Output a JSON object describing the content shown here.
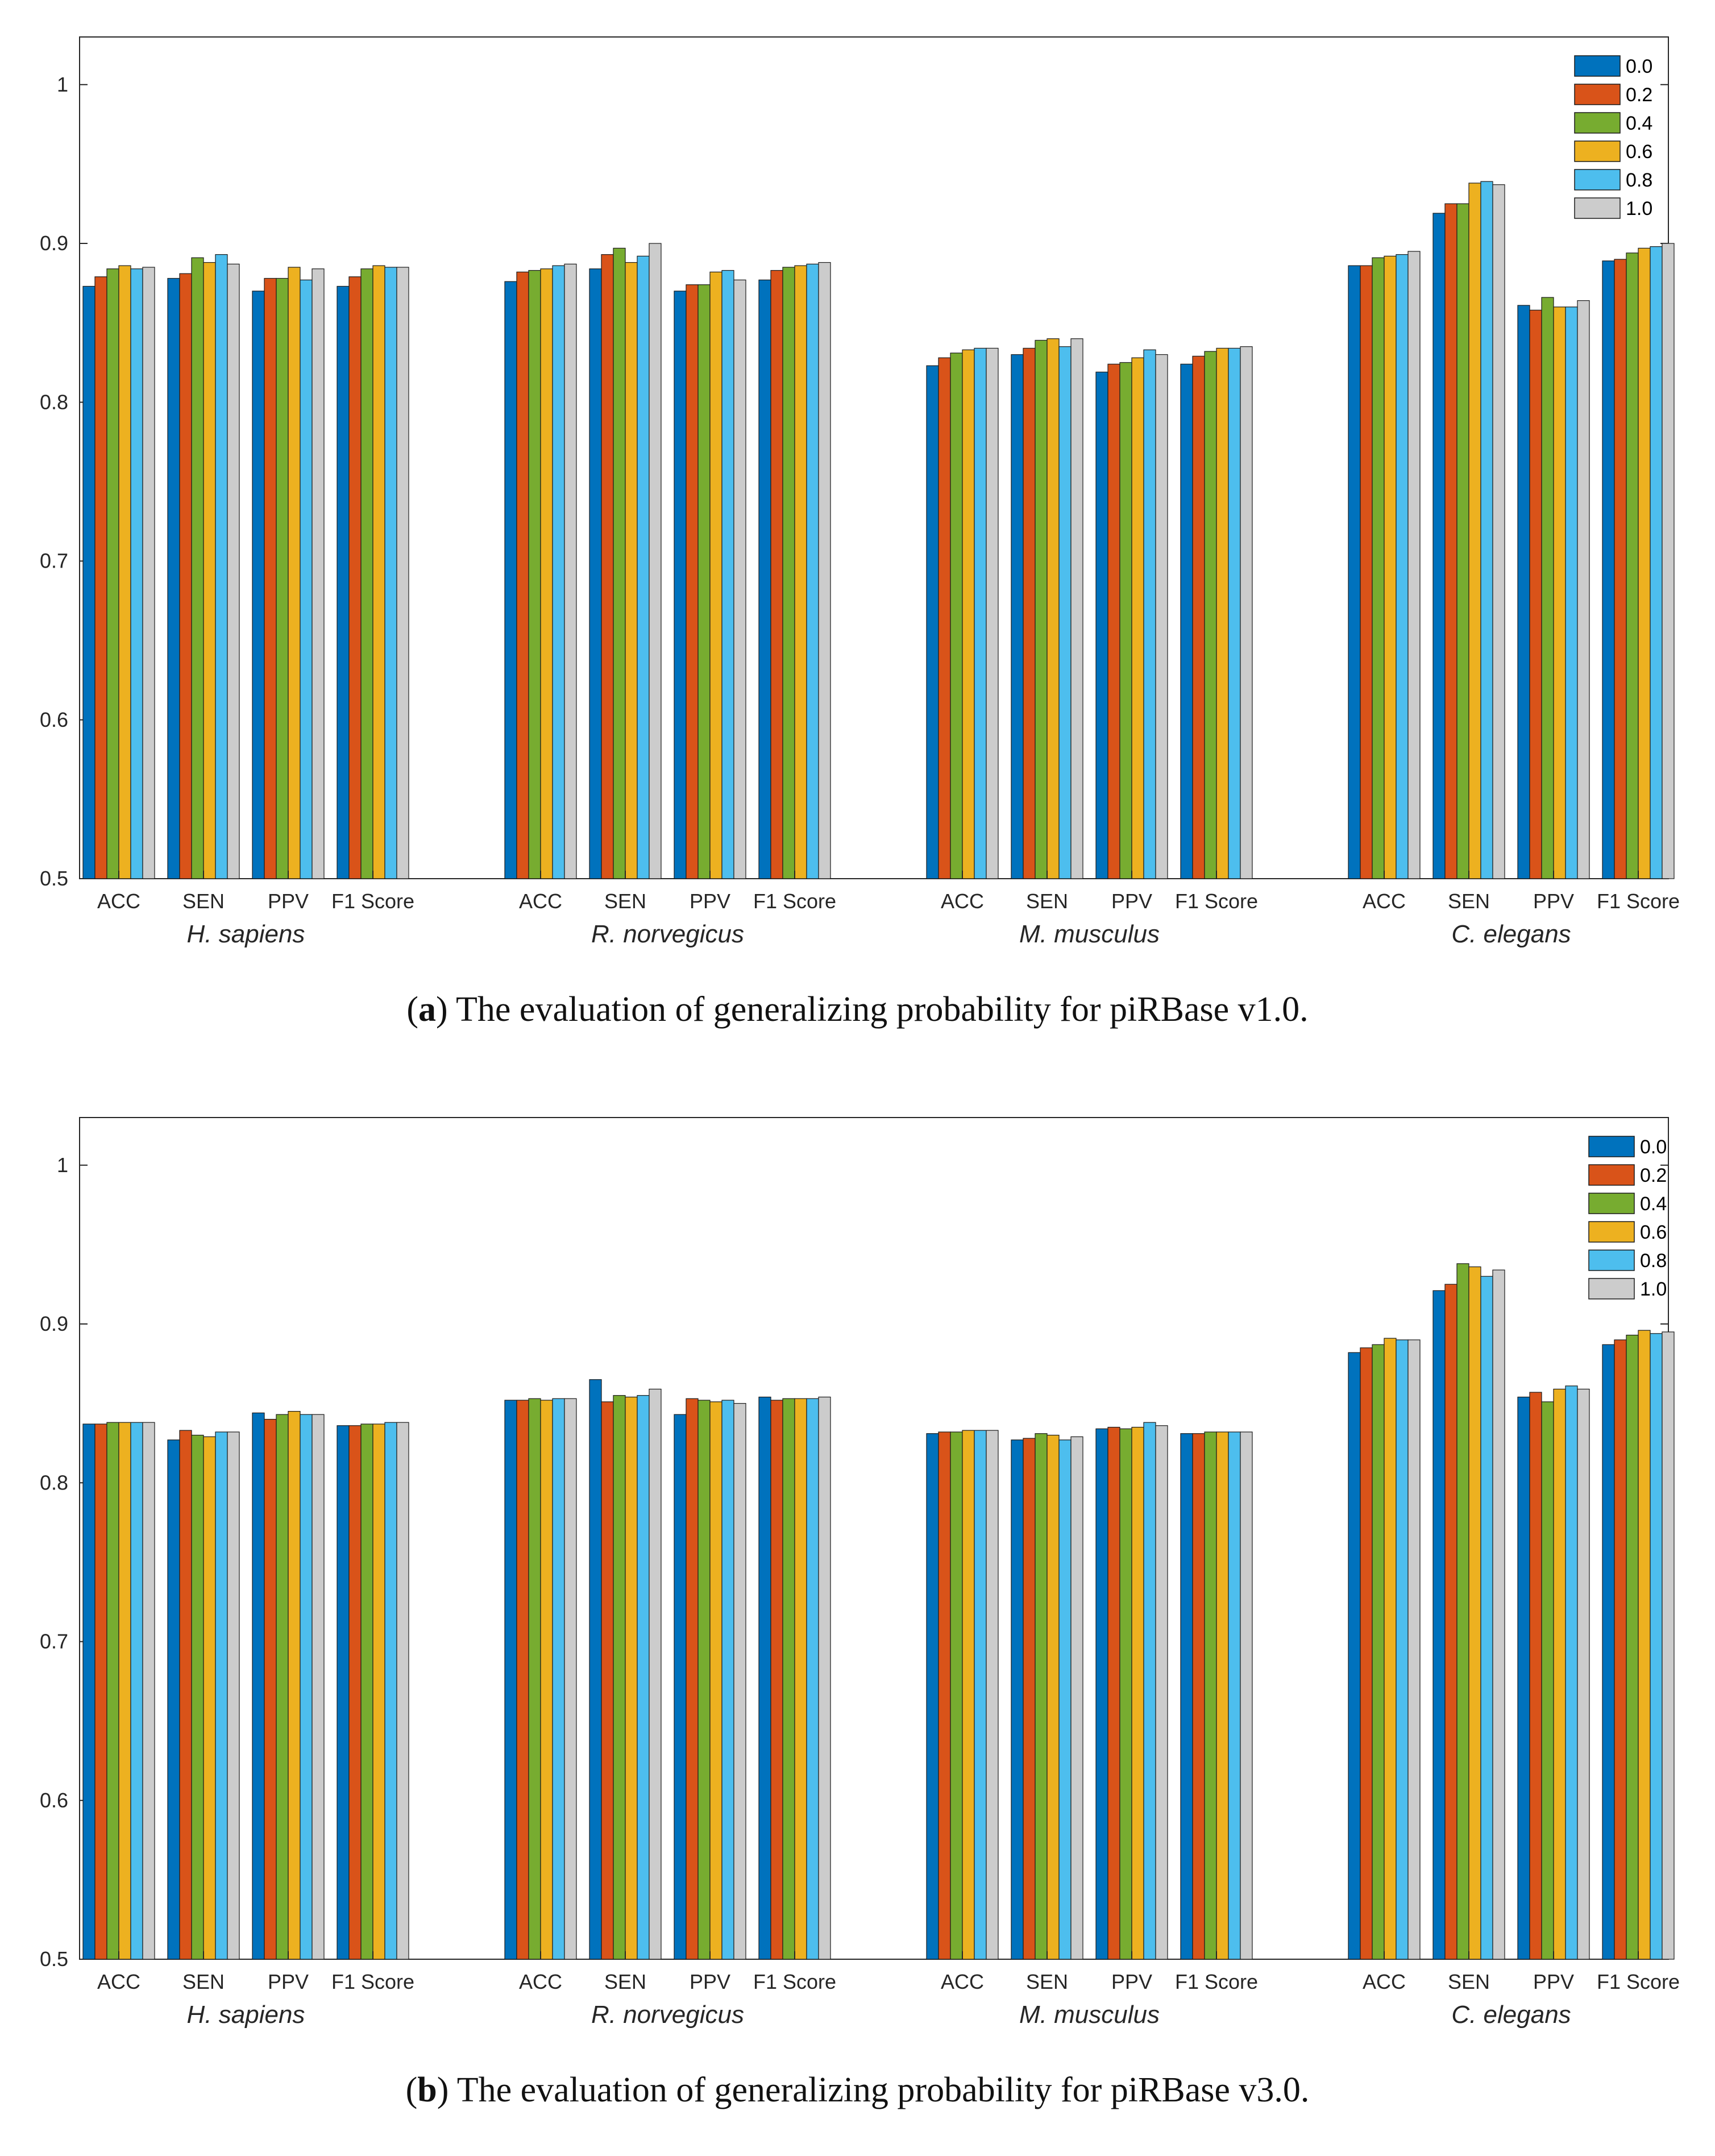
{
  "chart_data": [
    {
      "type": "bar",
      "panel": "a",
      "caption_letter": "a",
      "caption_text": "The evaluation of generalizing probability for piRBase v1.0.",
      "species": [
        "H. sapiens",
        "R. norvegicus",
        "M. musculus",
        "C. elegans"
      ],
      "metrics": [
        "ACC",
        "SEN",
        "PPV",
        "F1 Score"
      ],
      "series_names": [
        "0.0",
        "0.2",
        "0.4",
        "0.6",
        "0.8",
        "1.0"
      ],
      "ylim": [
        0.5,
        1.03
      ],
      "yticks": [
        "0.5",
        "0.6",
        "0.7",
        "0.8",
        "0.9",
        "1"
      ],
      "legend_position": "top-right",
      "values": [
        [
          [
            0.873,
            0.879,
            0.884,
            0.886,
            0.884,
            0.885
          ],
          [
            0.878,
            0.881,
            0.891,
            0.888,
            0.893,
            0.887
          ],
          [
            0.87,
            0.878,
            0.878,
            0.885,
            0.877,
            0.884
          ],
          [
            0.873,
            0.879,
            0.884,
            0.886,
            0.885,
            0.885
          ]
        ],
        [
          [
            0.876,
            0.882,
            0.883,
            0.884,
            0.886,
            0.887
          ],
          [
            0.884,
            0.893,
            0.897,
            0.888,
            0.892,
            0.9
          ],
          [
            0.87,
            0.874,
            0.874,
            0.882,
            0.883,
            0.877
          ],
          [
            0.877,
            0.883,
            0.885,
            0.886,
            0.887,
            0.888
          ]
        ],
        [
          [
            0.823,
            0.828,
            0.831,
            0.833,
            0.834,
            0.834
          ],
          [
            0.83,
            0.834,
            0.839,
            0.84,
            0.835,
            0.84
          ],
          [
            0.819,
            0.824,
            0.825,
            0.828,
            0.833,
            0.83
          ],
          [
            0.824,
            0.829,
            0.832,
            0.834,
            0.834,
            0.835
          ]
        ],
        [
          [
            0.886,
            0.886,
            0.891,
            0.892,
            0.893,
            0.895
          ],
          [
            0.919,
            0.925,
            0.925,
            0.938,
            0.939,
            0.937
          ],
          [
            0.861,
            0.858,
            0.866,
            0.86,
            0.86,
            0.864
          ],
          [
            0.889,
            0.89,
            0.894,
            0.897,
            0.898,
            0.9
          ]
        ]
      ]
    },
    {
      "type": "bar",
      "panel": "b",
      "caption_letter": "b",
      "caption_text": "The evaluation of generalizing probability for piRBase v3.0.",
      "species": [
        "H. sapiens",
        "R. norvegicus",
        "M. musculus",
        "C. elegans"
      ],
      "metrics": [
        "ACC",
        "SEN",
        "PPV",
        "F1 Score"
      ],
      "series_names": [
        "0.0",
        "0.2",
        "0.4",
        "0.6",
        "0.8",
        "1.0"
      ],
      "ylim": [
        0.5,
        1.03
      ],
      "yticks": [
        "0.5",
        "0.6",
        "0.7",
        "0.8",
        "0.9",
        "1"
      ],
      "legend_position": "top-right",
      "values": [
        [
          [
            0.837,
            0.837,
            0.838,
            0.838,
            0.838,
            0.838
          ],
          [
            0.827,
            0.833,
            0.83,
            0.829,
            0.832,
            0.832
          ],
          [
            0.844,
            0.84,
            0.843,
            0.845,
            0.843,
            0.843
          ],
          [
            0.836,
            0.836,
            0.837,
            0.837,
            0.838,
            0.838
          ]
        ],
        [
          [
            0.852,
            0.852,
            0.853,
            0.852,
            0.853,
            0.853
          ],
          [
            0.865,
            0.851,
            0.855,
            0.854,
            0.855,
            0.859
          ],
          [
            0.843,
            0.853,
            0.852,
            0.851,
            0.852,
            0.85
          ],
          [
            0.854,
            0.852,
            0.853,
            0.853,
            0.853,
            0.854
          ]
        ],
        [
          [
            0.831,
            0.832,
            0.832,
            0.833,
            0.833,
            0.833
          ],
          [
            0.827,
            0.828,
            0.831,
            0.83,
            0.827,
            0.829
          ],
          [
            0.834,
            0.835,
            0.834,
            0.835,
            0.838,
            0.836
          ],
          [
            0.831,
            0.831,
            0.832,
            0.832,
            0.832,
            0.832
          ]
        ],
        [
          [
            0.882,
            0.885,
            0.887,
            0.891,
            0.89,
            0.89
          ],
          [
            0.921,
            0.925,
            0.938,
            0.936,
            0.93,
            0.934
          ],
          [
            0.854,
            0.857,
            0.851,
            0.859,
            0.861,
            0.859
          ],
          [
            0.887,
            0.89,
            0.893,
            0.896,
            0.894,
            0.895
          ]
        ]
      ]
    }
  ],
  "series_colors": [
    "#0072BD",
    "#D95319",
    "#77AC30",
    "#EDB120",
    "#4DBEEE",
    "#CCCCCC"
  ]
}
